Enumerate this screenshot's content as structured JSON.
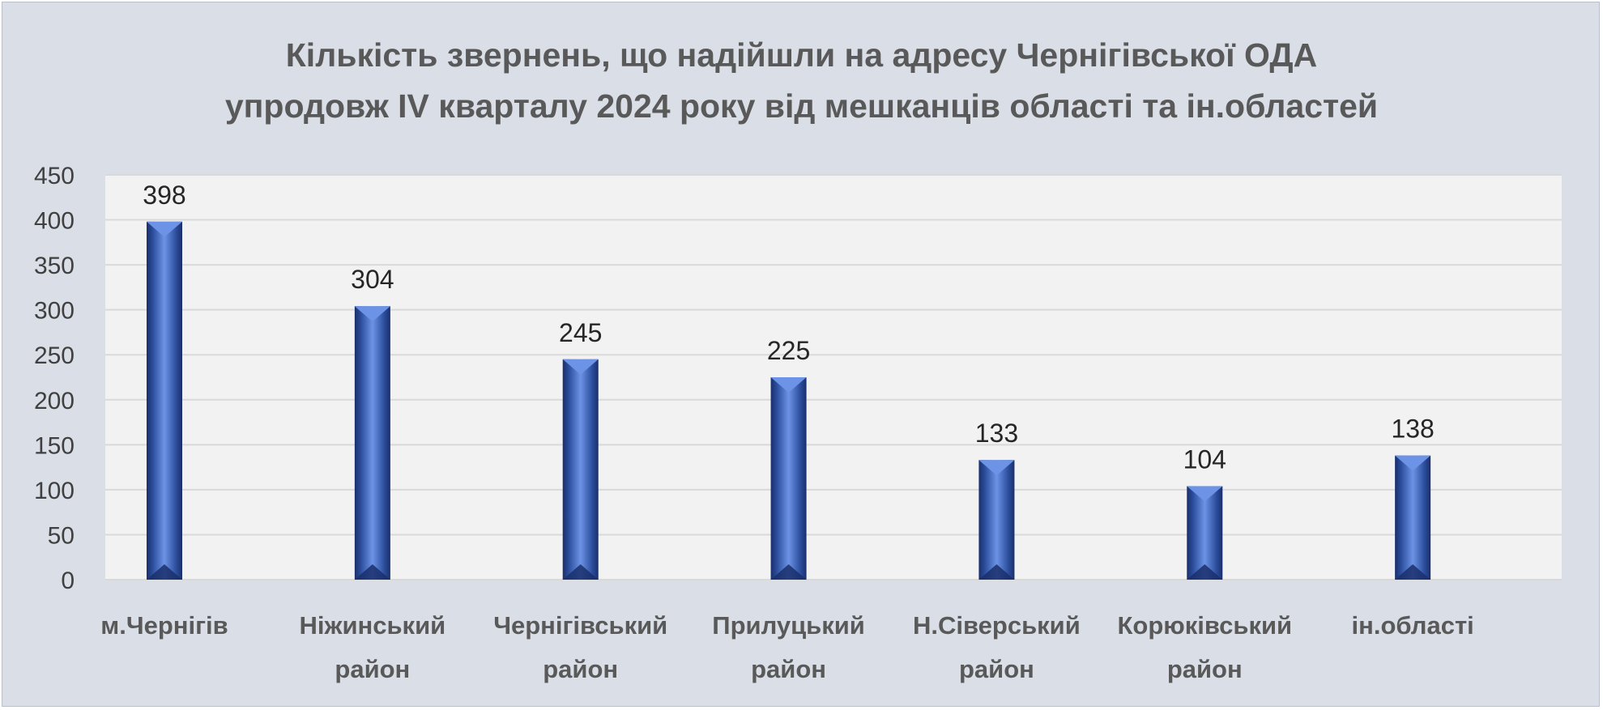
{
  "chart_data": {
    "type": "bar",
    "title_lines": [
      "Кількість звернень, що надійшли на адресу Чернігівської ОДА",
      "упродовж IV кварталу 2024 року від мешканців області та ін.областей"
    ],
    "categories": [
      [
        "м.Чернігів"
      ],
      [
        "Ніжинський",
        "район"
      ],
      [
        "Чернігівський",
        "район"
      ],
      [
        "Прилуцький",
        "район"
      ],
      [
        "Н.Сіверський",
        "район"
      ],
      [
        "Корюківський",
        "район"
      ],
      [
        "ін.області"
      ]
    ],
    "values": [
      398,
      304,
      245,
      225,
      133,
      104,
      138
    ],
    "yticks": [
      "0",
      "50",
      "100",
      "150",
      "200",
      "250",
      "300",
      "350",
      "400",
      "450"
    ],
    "ylim": [
      0,
      450
    ],
    "grid": true,
    "colors": {
      "bar": "#3b63ba",
      "bar_dark": "#1a2f6b",
      "bar_light": "#6d93e6",
      "plot_bg": "#f2f2f2",
      "grid": "#d9d9d9"
    }
  }
}
